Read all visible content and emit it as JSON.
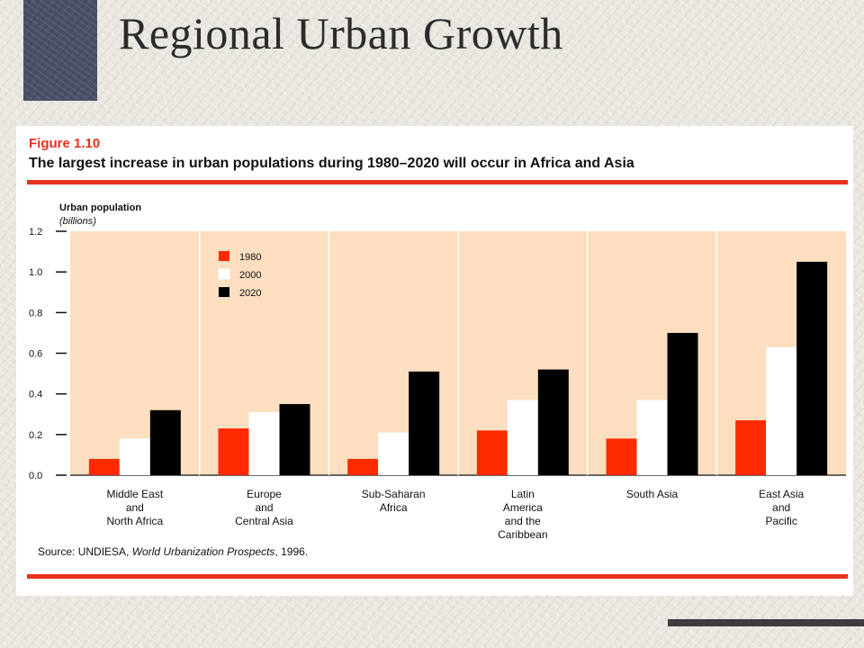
{
  "slide": {
    "title": "Regional Urban Growth"
  },
  "figure": {
    "label": "Figure 1.10",
    "caption": "The largest increase in urban populations during 1980–2020 will occur in Africa and Asia",
    "source_prefix": "Source: UNDIESA, ",
    "source_title": "World Urbanization Prospects",
    "source_suffix": ", 1996."
  },
  "colors": {
    "accent_red": "#e8321c",
    "panel_bg": "#fbdfc0",
    "bar_2000": "#ffffff",
    "bar_2020": "#000000"
  },
  "chart_data": {
    "type": "bar",
    "ylabel": "Urban population",
    "yunit": "(billions)",
    "ylim": [
      0,
      1.2
    ],
    "yticks": [
      "0.0",
      "0.2",
      "0.4",
      "0.6",
      "0.8",
      "1.0",
      "1.2"
    ],
    "legend_position": "top-left",
    "categories": [
      [
        "Middle East",
        "and",
        "North Africa"
      ],
      [
        "Europe",
        "and",
        "Central Asia"
      ],
      [
        "Sub-Saharan",
        "Africa"
      ],
      [
        "Latin",
        "America",
        "and the",
        "Caribbean"
      ],
      [
        "South Asia"
      ],
      [
        "East Asia",
        "and",
        "Pacific"
      ]
    ],
    "series": [
      {
        "name": "1980",
        "color": "#ff2a00",
        "values": [
          0.08,
          0.23,
          0.08,
          0.22,
          0.18,
          0.27
        ]
      },
      {
        "name": "2000",
        "color": "#ffffff",
        "values": [
          0.18,
          0.31,
          0.21,
          0.37,
          0.37,
          0.63
        ]
      },
      {
        "name": "2020",
        "color": "#000000",
        "values": [
          0.32,
          0.35,
          0.51,
          0.52,
          0.7,
          1.05
        ]
      }
    ]
  }
}
